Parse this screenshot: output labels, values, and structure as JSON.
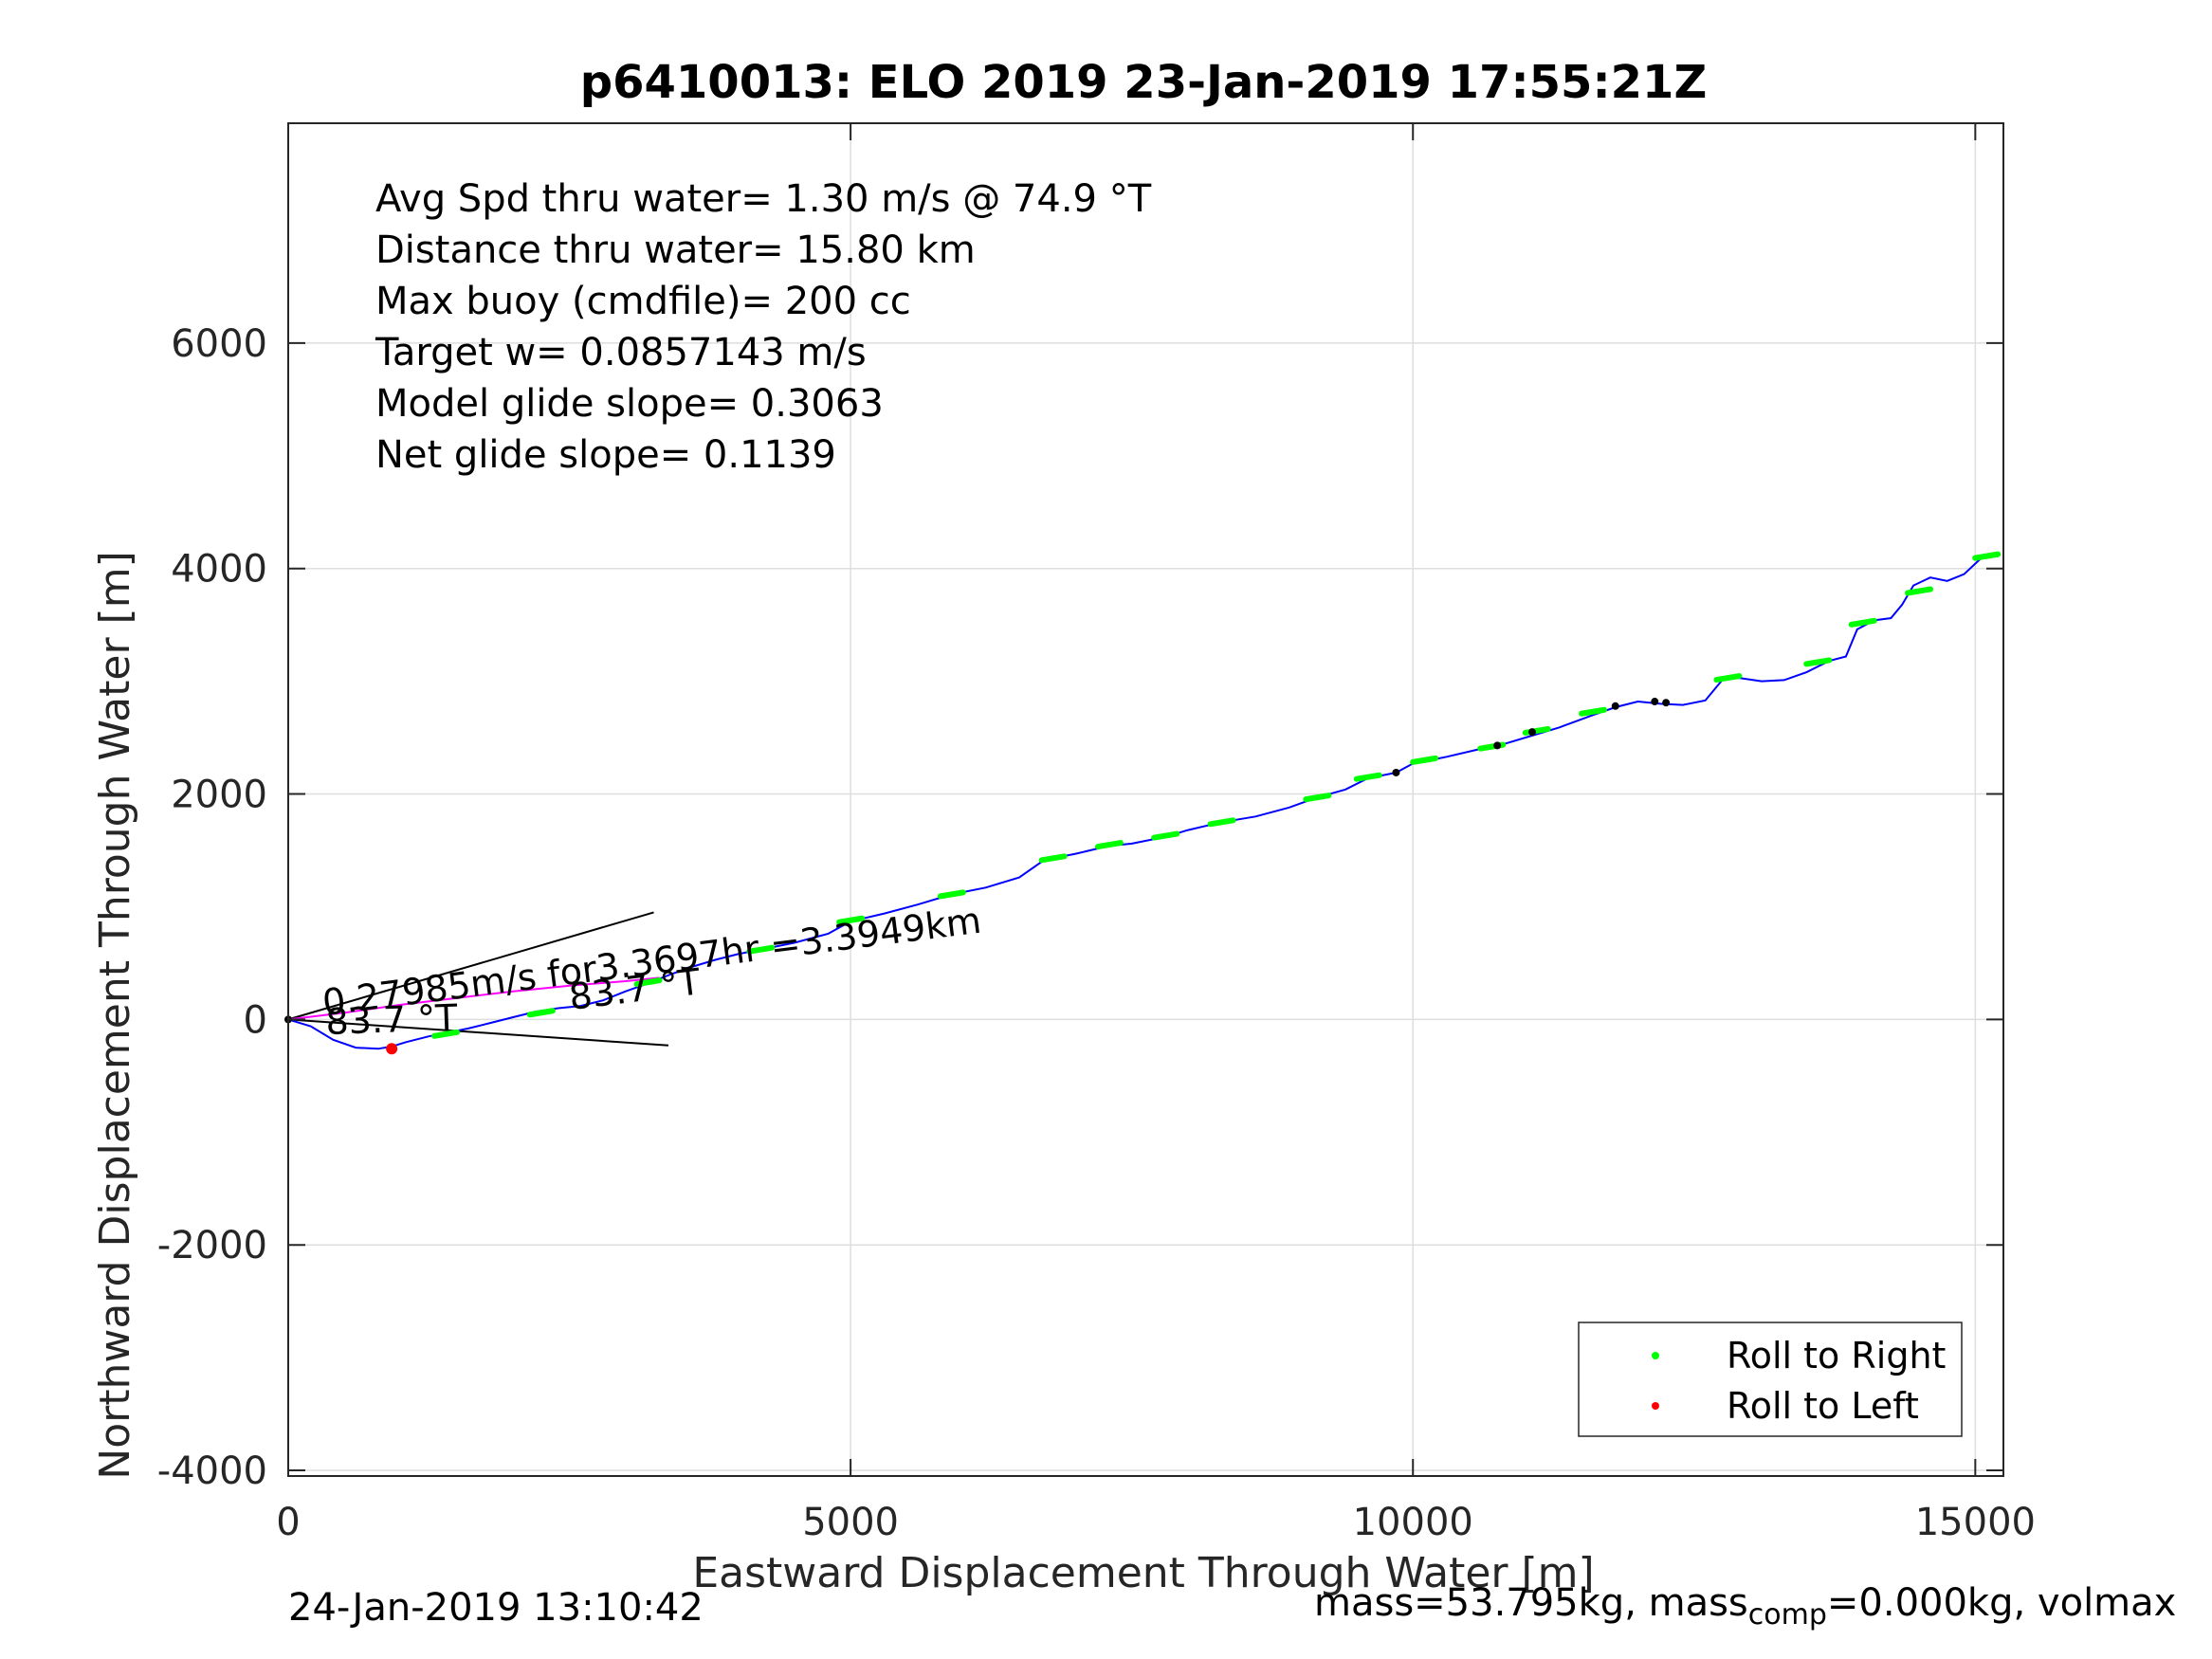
{
  "chart_data": {
    "type": "line",
    "title": "p6410013: ELO 2019 23-Jan-2019 17:55:21Z",
    "xlabel": "Eastward Displacement Through Water [m]",
    "ylabel": "Northward Displacement Through Water [m]",
    "xlim": [
      0,
      15250
    ],
    "ylim": [
      -4050,
      7950
    ],
    "xticks": [
      0,
      5000,
      10000,
      15000
    ],
    "xtick_labels": [
      "0",
      "5000",
      "10000",
      "15000"
    ],
    "yticks": [
      -4000,
      -2000,
      0,
      2000,
      4000,
      6000
    ],
    "ytick_labels": [
      "-4000",
      "-2000",
      "0",
      "2000",
      "4000",
      "6000"
    ],
    "grid": true,
    "annotations": [
      "Avg Spd thru water=  1.30 m/s @  74.9 °T",
      "Distance thru water= 15.80 km",
      "Max buoy (cmdfile)= 200 cc",
      "Target w= 0.0857143 m/s",
      "Model glide slope= 0.3063",
      "Net glide slope= 0.1139"
    ],
    "current_label": "0.27985m/s for3.3697hr =3.3949km",
    "heading_labels": [
      "83.7 °T",
      "83.7 °T"
    ],
    "legend": {
      "placement": "bottom-right",
      "entries": [
        {
          "name": "Roll to Right",
          "color": "#00ff00"
        },
        {
          "name": "Roll to Left",
          "color": "#ff0000"
        }
      ]
    },
    "series": [
      {
        "color": "#0000ff",
        "x": [
          0,
          200,
          400,
          600,
          800,
          920,
          1050,
          1250,
          1400,
          1600,
          1800,
          2000,
          2200,
          2400,
          2600,
          2800,
          3000,
          3200,
          3400,
          3600,
          3800,
          4000,
          4200,
          4500,
          4800,
          5000,
          5300,
          5600,
          5900,
          6200,
          6500,
          6700,
          6800,
          7000,
          7300,
          7500,
          7800,
          8000,
          8300,
          8600,
          8900,
          9150,
          9400,
          9600,
          9850,
          10000,
          10300,
          10600,
          10800,
          11100,
          11300,
          11600,
          11800,
          12000,
          12200,
          12400,
          12600,
          12750,
          12900,
          13100,
          13300,
          13500,
          13700,
          13850,
          13950,
          14100,
          14250,
          14350,
          14450,
          14600,
          14750,
          14900,
          15050,
          15200
        ],
        "y": [
          0,
          -60,
          -180,
          -250,
          -260,
          -240,
          -200,
          -150,
          -120,
          -80,
          -30,
          20,
          70,
          100,
          120,
          170,
          250,
          320,
          400,
          470,
          530,
          580,
          620,
          680,
          760,
          870,
          940,
          1020,
          1110,
          1170,
          1260,
          1400,
          1430,
          1470,
          1540,
          1560,
          1620,
          1680,
          1750,
          1800,
          1880,
          1970,
          2040,
          2140,
          2190,
          2270,
          2330,
          2400,
          2440,
          2530,
          2590,
          2700,
          2770,
          2820,
          2800,
          2790,
          2830,
          3010,
          3030,
          3000,
          3010,
          3080,
          3180,
          3220,
          3460,
          3540,
          3560,
          3680,
          3850,
          3920,
          3890,
          3950,
          4090,
          4110
        ]
      },
      {
        "color": "#ff00ff",
        "x": [
          0,
          500,
          1000,
          1500,
          2000,
          2500,
          3000,
          3300
        ],
        "y": [
          0,
          60,
          130,
          190,
          250,
          300,
          340,
          370
        ]
      }
    ],
    "markers": {
      "roll_right": {
        "color": "#00ff00",
        "x": [
          1400,
          2250,
          3200,
          4200,
          5000,
          5900,
          6800,
          7300,
          7800,
          8300,
          9150,
          9600,
          10100,
          10700,
          11100,
          11600,
          12800,
          13600,
          14000,
          14500,
          15100
        ],
        "y": [
          -130,
          60,
          330,
          620,
          880,
          1110,
          1430,
          1550,
          1630,
          1750,
          1970,
          2150,
          2300,
          2420,
          2560,
          2730,
          3030,
          3170,
          3520,
          3800,
          4110
        ]
      },
      "roll_left": {
        "color": "#ff0000",
        "x": [
          920
        ],
        "y": [
          -260
        ]
      }
    },
    "current_vector": {
      "direction_deg_true": 83.7,
      "speed_m_s": 0.27985,
      "duration_hr": 3.3697,
      "distance_km": 3.3949
    }
  },
  "footer": {
    "timestamp": "24-Jan-2019 13:10:42",
    "mass_text": "mass=53.795kg, mass",
    "mass_sub": "comp",
    "mass_rest": "=0.000kg, volmax"
  }
}
